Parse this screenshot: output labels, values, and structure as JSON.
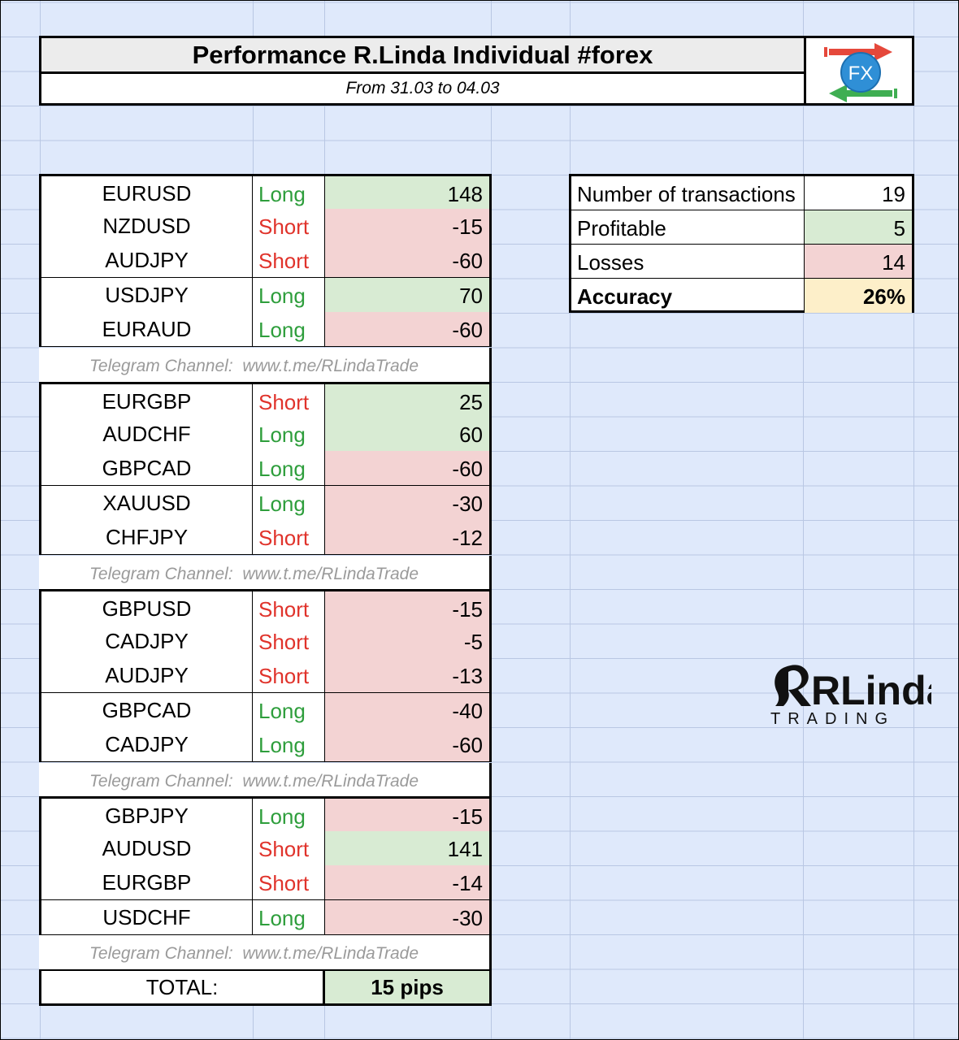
{
  "header": {
    "title": "Performance R.Linda Individual #forex",
    "subtitle": "From 31.03 to 04.03",
    "logo_text": "FX"
  },
  "trades": [
    {
      "pair": "EURUSD",
      "direction": "Long",
      "pips": "148",
      "result": "profit"
    },
    {
      "pair": "NZDUSD",
      "direction": "Short",
      "pips": "-15",
      "result": "loss"
    },
    {
      "pair": "AUDJPY",
      "direction": "Short",
      "pips": "-60",
      "result": "loss"
    },
    {
      "pair": "USDJPY",
      "direction": "Long",
      "pips": "70",
      "result": "profit"
    },
    {
      "pair": "EURAUD",
      "direction": "Long",
      "pips": "-60",
      "result": "loss"
    },
    {
      "pair": "EURGBP",
      "direction": "Short",
      "pips": "25",
      "result": "profit"
    },
    {
      "pair": "AUDCHF",
      "direction": "Long",
      "pips": "60",
      "result": "profit"
    },
    {
      "pair": "GBPCAD",
      "direction": "Long",
      "pips": "-60",
      "result": "loss"
    },
    {
      "pair": "XAUUSD",
      "direction": "Long",
      "pips": "-30",
      "result": "loss"
    },
    {
      "pair": "CHFJPY",
      "direction": "Short",
      "pips": "-12",
      "result": "loss"
    },
    {
      "pair": "GBPUSD",
      "direction": "Short",
      "pips": "-15",
      "result": "loss"
    },
    {
      "pair": "CADJPY",
      "direction": "Short",
      "pips": "-5",
      "result": "loss"
    },
    {
      "pair": "AUDJPY",
      "direction": "Short",
      "pips": "-13",
      "result": "loss"
    },
    {
      "pair": "GBPCAD",
      "direction": "Long",
      "pips": "-40",
      "result": "loss"
    },
    {
      "pair": "CADJPY",
      "direction": "Long",
      "pips": "-60",
      "result": "loss"
    },
    {
      "pair": "GBPJPY",
      "direction": "Long",
      "pips": "-15",
      "result": "loss"
    },
    {
      "pair": "AUDUSD",
      "direction": "Short",
      "pips": "141",
      "result": "profit"
    },
    {
      "pair": "EURGBP",
      "direction": "Short",
      "pips": "-14",
      "result": "loss"
    },
    {
      "pair": "USDCHF",
      "direction": "Long",
      "pips": "-30",
      "result": "loss"
    }
  ],
  "telegram_note": "Telegram Channel:  www.t.me/RLindaTrade",
  "total": {
    "label": "TOTAL:",
    "value": "15 pips"
  },
  "stats": [
    {
      "label": "Number of transactions",
      "value": "19",
      "style": "plain"
    },
    {
      "label": "Profitable",
      "value": "5",
      "style": "profit"
    },
    {
      "label": "Losses",
      "value": "14",
      "style": "loss"
    },
    {
      "label": "Accuracy",
      "value": "26%",
      "style": "accuracy"
    }
  ],
  "brand": {
    "name": "RLinda",
    "tagline": "TRADING"
  },
  "colors": {
    "sheet_background": "#dfe9fb",
    "profit_fill": "#d8ebd3",
    "loss_fill": "#f3d3d3",
    "accuracy_fill": "#fdefc9",
    "long_text": "#2e9e3c",
    "short_text": "#e0332b"
  },
  "icons": [
    "fx-exchange-logo-icon",
    "rlinda-trading-logo"
  ]
}
